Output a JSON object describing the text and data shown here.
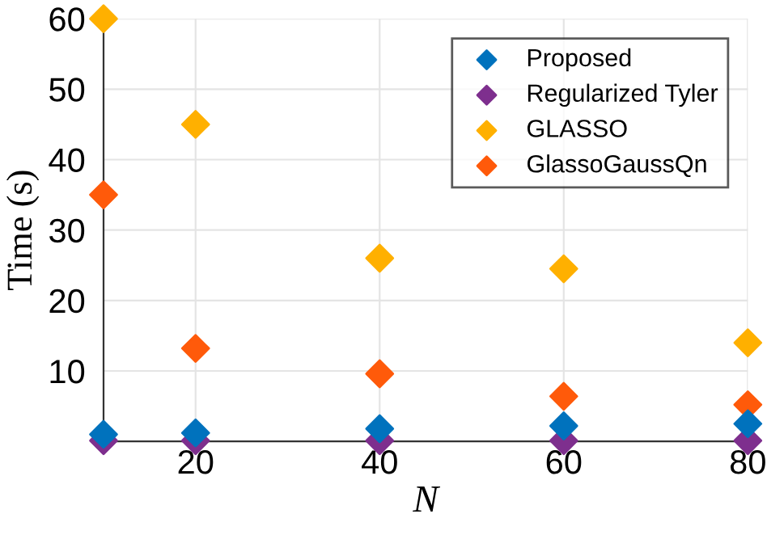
{
  "chart_data": {
    "type": "scatter",
    "xlabel": "N",
    "ylabel": "Time (s)",
    "x": [
      10,
      20,
      40,
      60,
      80
    ],
    "series": [
      {
        "name": "Proposed",
        "color": "#0072bd",
        "values": [
          1.0,
          1.2,
          1.8,
          2.2,
          2.5
        ]
      },
      {
        "name": "Regularized Tyler",
        "color": "#7e2f8e",
        "values": [
          0.1,
          0.1,
          0.1,
          0.1,
          0.1
        ]
      },
      {
        "name": "GLASSO",
        "color": "#ffb000",
        "values": [
          60,
          45,
          26,
          24.5,
          14
        ]
      },
      {
        "name": "GlassoGaussQn",
        "color": "#ff5a0a",
        "values": [
          35,
          13.2,
          9.6,
          6.4,
          5.2
        ]
      }
    ],
    "xlim": [
      10,
      80
    ],
    "xticks": [
      20,
      40,
      60,
      80
    ],
    "ylim": [
      0,
      60
    ],
    "yticks": [
      10,
      20,
      30,
      40,
      50,
      60
    ],
    "grid": true,
    "legend": "top right",
    "marker": "diamond"
  }
}
